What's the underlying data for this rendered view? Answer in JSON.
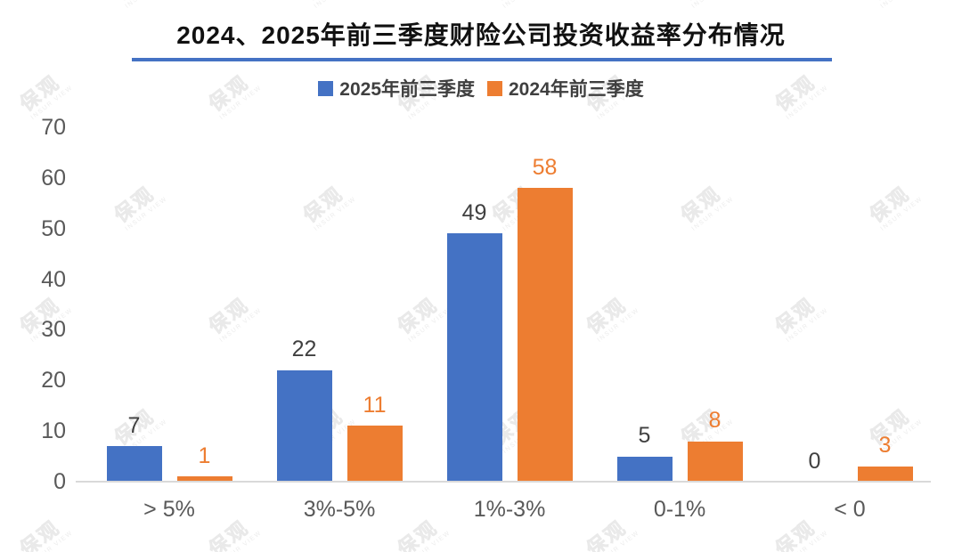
{
  "title": "2024、2025年前三季度财险公司投资收益率分布情况",
  "watermark": {
    "text": "保观",
    "subtext": "INSUR VIEW"
  },
  "colors": {
    "accent_line": "#4472C4",
    "axis_line": "#D9D9D9",
    "axis_text": "#595959",
    "title_text": "#111111",
    "watermark": "#ececec"
  },
  "legend": {
    "items": [
      {
        "label": "2025年前三季度",
        "color": "#4472C4"
      },
      {
        "label": "2024年前三季度",
        "color": "#ED7D31"
      }
    ]
  },
  "chart_data": {
    "type": "bar",
    "title": "2024、2025年前三季度财险公司投资收益率分布情况",
    "categories": [
      "> 5%",
      "3%-5%",
      "1%-3%",
      "0-1%",
      "< 0"
    ],
    "series": [
      {
        "name": "2025年前三季度",
        "color": "#4472C4",
        "label_color": "#404040",
        "values": [
          7,
          22,
          49,
          5,
          0
        ]
      },
      {
        "name": "2024年前三季度",
        "color": "#ED7D31",
        "label_color": "#ED7D31",
        "values": [
          1,
          11,
          58,
          8,
          3
        ]
      }
    ],
    "yticks": [
      0,
      10,
      20,
      30,
      40,
      50,
      60,
      70
    ],
    "ylim": [
      0,
      70
    ],
    "xlabel": "",
    "ylabel": "",
    "grid": false,
    "legend_position": "top",
    "data_labels": true
  }
}
